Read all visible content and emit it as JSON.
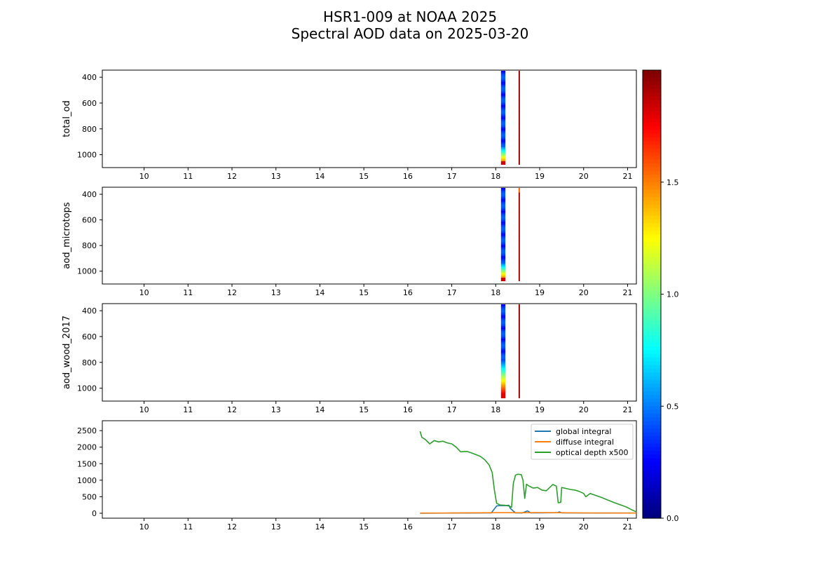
{
  "title": {
    "line1": "HSR1-009 at NOAA 2025",
    "line2": "Spectral AOD data on 2025-03-20"
  },
  "chart_data": [
    {
      "type": "heatmap",
      "ylabel": "total_od",
      "xlim": [
        9.05,
        21.2
      ],
      "ylim": [
        1100,
        345
      ],
      "xticks": [
        10,
        11,
        12,
        13,
        14,
        15,
        16,
        17,
        18,
        19,
        20,
        21
      ],
      "yticks": [
        400,
        600,
        800,
        1000
      ],
      "strips": [
        {
          "x": [
            18.12,
            18.22
          ],
          "profile": "blue_to_yellow_red_tip"
        },
        {
          "x": [
            18.52,
            18.55
          ],
          "profile": "dark_red"
        }
      ]
    },
    {
      "type": "heatmap",
      "ylabel": "aod_microtops",
      "xlim": [
        9.05,
        21.2
      ],
      "ylim": [
        1100,
        345
      ],
      "xticks": [
        10,
        11,
        12,
        13,
        14,
        15,
        16,
        17,
        18,
        19,
        20,
        21
      ],
      "yticks": [
        400,
        600,
        800,
        1000
      ],
      "strips": [
        {
          "x": [
            18.12,
            18.22
          ],
          "profile": "blue_to_yellow_red_tip"
        },
        {
          "x": [
            18.52,
            18.55
          ],
          "profile": "orange_top_dark_red"
        }
      ]
    },
    {
      "type": "heatmap",
      "ylabel": "aod_wood_2017",
      "xlim": [
        9.05,
        21.2
      ],
      "ylim": [
        1100,
        345
      ],
      "xticks": [
        10,
        11,
        12,
        13,
        14,
        15,
        16,
        17,
        18,
        19,
        20,
        21
      ],
      "yticks": [
        400,
        600,
        800,
        1000
      ],
      "strips": [
        {
          "x": [
            18.12,
            18.22
          ],
          "profile": "blue_to_red"
        },
        {
          "x": [
            18.52,
            18.55
          ],
          "profile": "dark_red"
        }
      ]
    },
    {
      "type": "line",
      "xlim": [
        9.05,
        21.2
      ],
      "ylim": [
        -150,
        2800
      ],
      "xticks": [
        10,
        11,
        12,
        13,
        14,
        15,
        16,
        17,
        18,
        19,
        20,
        21
      ],
      "yticks": [
        0,
        500,
        1000,
        1500,
        2000,
        2500
      ],
      "legend_position": "upper-right",
      "series": [
        {
          "name": "global integral",
          "color": "#1f77b4",
          "points": [
            [
              16.28,
              0
            ],
            [
              17.0,
              5
            ],
            [
              17.9,
              10
            ],
            [
              18.02,
              220
            ],
            [
              18.1,
              235
            ],
            [
              18.2,
              230
            ],
            [
              18.3,
              240
            ],
            [
              18.33,
              150
            ],
            [
              18.45,
              10
            ],
            [
              18.6,
              8
            ],
            [
              18.72,
              70
            ],
            [
              18.8,
              10
            ],
            [
              19.4,
              15
            ],
            [
              19.45,
              40
            ],
            [
              19.5,
              10
            ],
            [
              21.2,
              5
            ]
          ]
        },
        {
          "name": "diffuse integral",
          "color": "#ff7f0e",
          "points": [
            [
              16.28,
              5
            ],
            [
              17.0,
              8
            ],
            [
              17.9,
              15
            ],
            [
              18.1,
              20
            ],
            [
              18.5,
              15
            ],
            [
              19.0,
              20
            ],
            [
              19.5,
              15
            ],
            [
              20.0,
              10
            ],
            [
              21.2,
              5
            ]
          ]
        },
        {
          "name": "optical depth x500",
          "color": "#2ca02c",
          "points": [
            [
              16.28,
              2480
            ],
            [
              16.32,
              2300
            ],
            [
              16.4,
              2230
            ],
            [
              16.5,
              2100
            ],
            [
              16.6,
              2200
            ],
            [
              16.7,
              2160
            ],
            [
              16.8,
              2180
            ],
            [
              16.9,
              2130
            ],
            [
              17.0,
              2100
            ],
            [
              17.1,
              2000
            ],
            [
              17.2,
              1860
            ],
            [
              17.35,
              1870
            ],
            [
              17.5,
              1800
            ],
            [
              17.65,
              1720
            ],
            [
              17.75,
              1620
            ],
            [
              17.85,
              1460
            ],
            [
              17.92,
              1230
            ],
            [
              17.97,
              700
            ],
            [
              18.02,
              300
            ],
            [
              18.1,
              250
            ],
            [
              18.2,
              240
            ],
            [
              18.3,
              220
            ],
            [
              18.36,
              180
            ],
            [
              18.4,
              900
            ],
            [
              18.45,
              1150
            ],
            [
              18.5,
              1180
            ],
            [
              18.58,
              1170
            ],
            [
              18.62,
              1000
            ],
            [
              18.66,
              450
            ],
            [
              18.7,
              880
            ],
            [
              18.75,
              830
            ],
            [
              18.85,
              760
            ],
            [
              18.95,
              780
            ],
            [
              19.05,
              700
            ],
            [
              19.15,
              680
            ],
            [
              19.3,
              870
            ],
            [
              19.38,
              820
            ],
            [
              19.42,
              320
            ],
            [
              19.48,
              330
            ],
            [
              19.5,
              780
            ],
            [
              19.6,
              750
            ],
            [
              19.7,
              720
            ],
            [
              19.8,
              700
            ],
            [
              19.9,
              660
            ],
            [
              20.0,
              600
            ],
            [
              20.05,
              500
            ],
            [
              20.15,
              600
            ],
            [
              20.25,
              550
            ],
            [
              20.4,
              480
            ],
            [
              20.55,
              400
            ],
            [
              20.7,
              320
            ],
            [
              20.85,
              250
            ],
            [
              20.95,
              200
            ],
            [
              21.0,
              170
            ],
            [
              21.1,
              100
            ],
            [
              21.2,
              40
            ]
          ]
        }
      ]
    }
  ],
  "colorbar": {
    "colormap": "jet",
    "range": [
      0.0,
      2.0
    ],
    "ticks": [
      {
        "value": 0.0,
        "label": "0.0"
      },
      {
        "value": 0.5,
        "label": "0.5"
      },
      {
        "value": 1.0,
        "label": "1.0"
      },
      {
        "value": 1.5,
        "label": "1.5"
      }
    ]
  }
}
